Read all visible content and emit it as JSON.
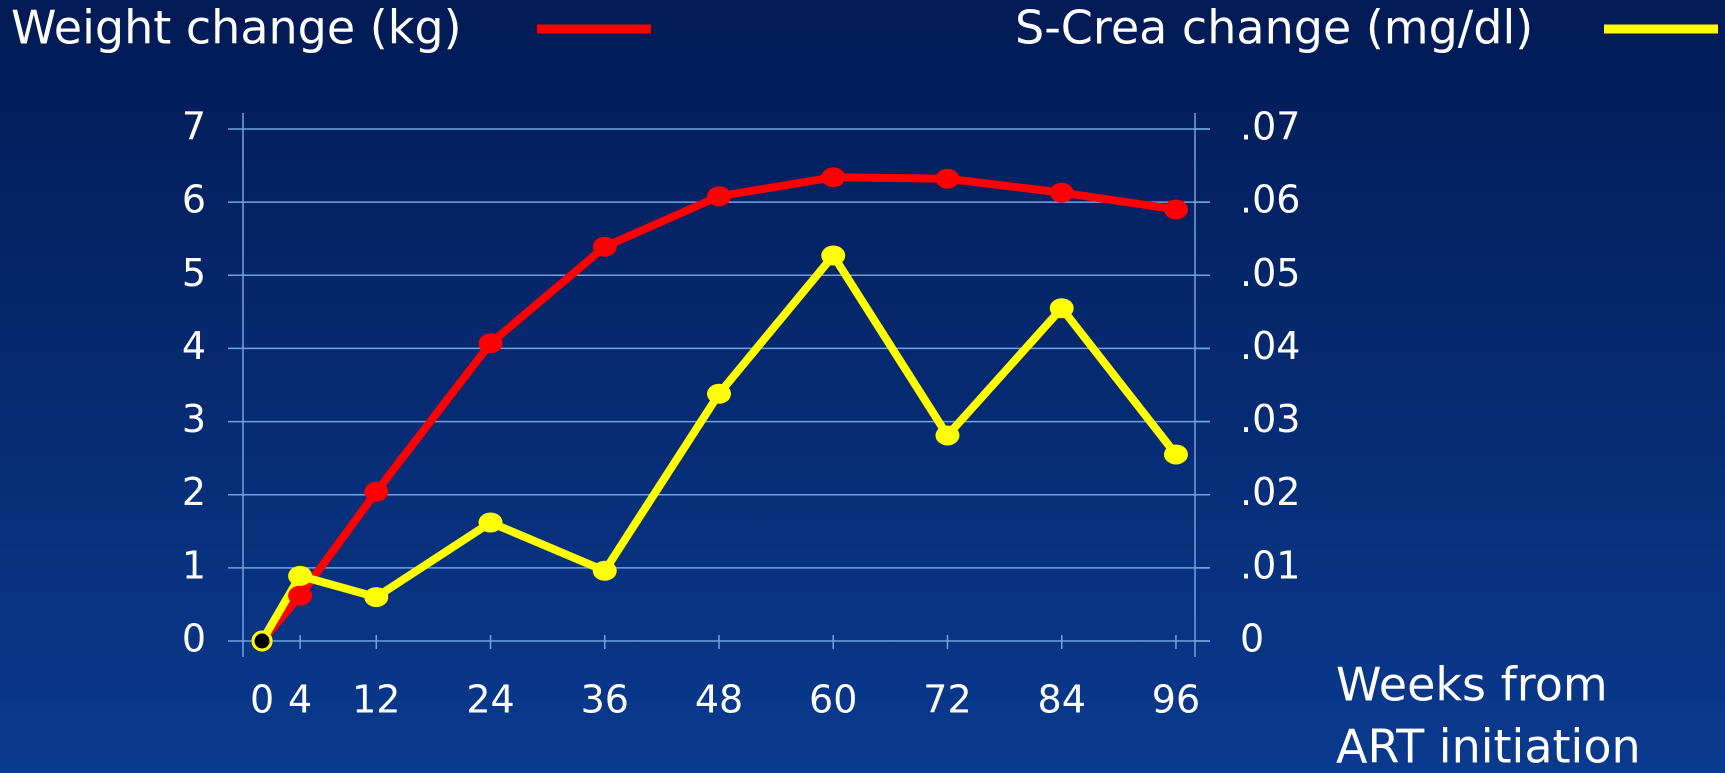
{
  "chart_data": {
    "type": "line",
    "x": [
      0,
      4,
      12,
      24,
      36,
      48,
      60,
      72,
      84,
      96
    ],
    "xlim": [
      -2,
      98
    ],
    "xlabel": [
      "Weeks from",
      "ART initiation"
    ],
    "ylim": [
      0,
      7
    ],
    "yticks": [
      0,
      1,
      2,
      3,
      4,
      5,
      6,
      7
    ],
    "y2lim": [
      0,
      0.07
    ],
    "y2ticks": [
      0,
      {
        "value": 0.01,
        "label": ".01"
      },
      {
        "value": 0.02,
        "label": ".02"
      },
      {
        "value": 0.03,
        "label": ".03"
      },
      {
        "value": 0.04,
        "label": ".04"
      },
      {
        "value": 0.05,
        "label": ".05"
      },
      {
        "value": 0.06,
        "label": ".06"
      },
      {
        "value": 0.07,
        "label": ".07"
      }
    ],
    "grid": true,
    "series": [
      {
        "name": "Weight change (kg)",
        "color": "#ff0000",
        "values": [
          0,
          0.62,
          2.04,
          4.07,
          5.39,
          6.08,
          6.34,
          6.32,
          6.13,
          5.9
        ]
      },
      {
        "name": "S-Crea change (mg/dl)",
        "color": "#ffff00",
        "axis": "y2",
        "values": [
          0,
          0.0089,
          0.006,
          0.0162,
          0.0096,
          0.0338,
          0.0527,
          0.0281,
          0.0455,
          0.0255
        ]
      }
    ]
  }
}
